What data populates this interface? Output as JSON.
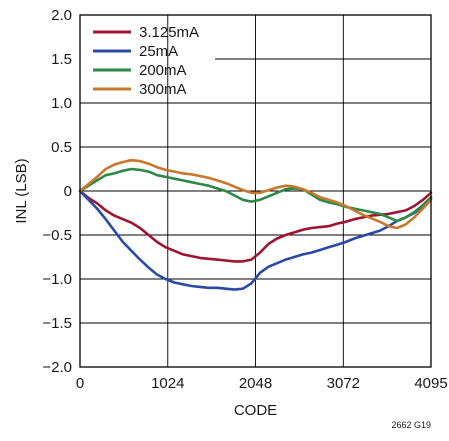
{
  "chart_data": {
    "type": "line",
    "title": "",
    "xlabel": "CODE",
    "ylabel": "INL (LSB)",
    "xlim": [
      0,
      4095
    ],
    "ylim": [
      -2.0,
      2.0
    ],
    "x_ticks": [
      0,
      1024,
      2048,
      3072,
      4095
    ],
    "x_tick_labels": [
      "0",
      "1024",
      "2048",
      "3072",
      "4095"
    ],
    "y_ticks": [
      2.0,
      1.5,
      1.0,
      0.5,
      0,
      -0.5,
      -1.0,
      -1.5,
      -2.0
    ],
    "y_tick_labels": [
      "2.0",
      "1.5",
      "1.0",
      "0.5",
      "0",
      "−0.5",
      "−1.0",
      "−1.5",
      "−2.0"
    ],
    "grid": true,
    "legend_position": "top-left",
    "figure_id": "2662 G19",
    "series": [
      {
        "name": "3.125mA",
        "color": "#9e1530",
        "x": [
          0,
          100,
          200,
          300,
          400,
          500,
          600,
          700,
          800,
          900,
          1000,
          1100,
          1200,
          1300,
          1400,
          1500,
          1600,
          1700,
          1800,
          1900,
          2000,
          2100,
          2200,
          2300,
          2400,
          2500,
          2600,
          2700,
          2800,
          2900,
          3000,
          3100,
          3200,
          3300,
          3400,
          3500,
          3600,
          3700,
          3800,
          3900,
          4000,
          4095
        ],
        "y": [
          0,
          -0.08,
          -0.14,
          -0.22,
          -0.28,
          -0.32,
          -0.36,
          -0.42,
          -0.5,
          -0.58,
          -0.64,
          -0.68,
          -0.72,
          -0.74,
          -0.76,
          -0.77,
          -0.78,
          -0.79,
          -0.8,
          -0.8,
          -0.78,
          -0.7,
          -0.6,
          -0.54,
          -0.5,
          -0.47,
          -0.44,
          -0.42,
          -0.41,
          -0.4,
          -0.37,
          -0.35,
          -0.32,
          -0.3,
          -0.28,
          -0.27,
          -0.26,
          -0.24,
          -0.22,
          -0.17,
          -0.1,
          -0.02
        ]
      },
      {
        "name": "25mA",
        "color": "#2b4aa6",
        "x": [
          0,
          100,
          200,
          300,
          400,
          500,
          600,
          700,
          800,
          900,
          1000,
          1100,
          1200,
          1300,
          1400,
          1500,
          1600,
          1700,
          1800,
          1900,
          2000,
          2100,
          2200,
          2300,
          2400,
          2500,
          2600,
          2700,
          2800,
          2900,
          3000,
          3100,
          3200,
          3300,
          3400,
          3500,
          3600,
          3700,
          3800,
          3900,
          4000,
          4095
        ],
        "y": [
          0,
          -0.1,
          -0.2,
          -0.32,
          -0.45,
          -0.58,
          -0.68,
          -0.78,
          -0.87,
          -0.95,
          -1.0,
          -1.04,
          -1.06,
          -1.08,
          -1.09,
          -1.1,
          -1.1,
          -1.11,
          -1.12,
          -1.11,
          -1.05,
          -0.93,
          -0.86,
          -0.82,
          -0.78,
          -0.75,
          -0.72,
          -0.7,
          -0.67,
          -0.64,
          -0.61,
          -0.58,
          -0.54,
          -0.51,
          -0.48,
          -0.45,
          -0.4,
          -0.34,
          -0.3,
          -0.25,
          -0.17,
          -0.08
        ]
      },
      {
        "name": "200mA",
        "color": "#2b8a4a",
        "x": [
          0,
          100,
          200,
          300,
          400,
          500,
          600,
          700,
          800,
          900,
          1000,
          1100,
          1200,
          1300,
          1400,
          1500,
          1600,
          1700,
          1800,
          1900,
          2000,
          2100,
          2200,
          2300,
          2400,
          2500,
          2600,
          2700,
          2800,
          2900,
          3000,
          3100,
          3200,
          3300,
          3400,
          3500,
          3600,
          3700,
          3800,
          3900,
          4000,
          4095
        ],
        "y": [
          0,
          0.06,
          0.12,
          0.18,
          0.2,
          0.23,
          0.25,
          0.24,
          0.22,
          0.18,
          0.16,
          0.14,
          0.12,
          0.1,
          0.08,
          0.06,
          0.03,
          0.0,
          -0.05,
          -0.1,
          -0.12,
          -0.1,
          -0.06,
          -0.02,
          0.02,
          0.03,
          0.02,
          -0.04,
          -0.1,
          -0.13,
          -0.15,
          -0.18,
          -0.2,
          -0.22,
          -0.24,
          -0.26,
          -0.3,
          -0.34,
          -0.3,
          -0.24,
          -0.16,
          -0.07
        ]
      },
      {
        "name": "300mA",
        "color": "#c9772c",
        "x": [
          0,
          100,
          200,
          300,
          400,
          500,
          600,
          700,
          800,
          900,
          1000,
          1100,
          1200,
          1300,
          1400,
          1500,
          1600,
          1700,
          1800,
          1900,
          2000,
          2100,
          2200,
          2300,
          2400,
          2500,
          2600,
          2700,
          2800,
          2900,
          3000,
          3100,
          3200,
          3300,
          3400,
          3500,
          3600,
          3700,
          3800,
          3900,
          4000,
          4095
        ],
        "y": [
          0,
          0.08,
          0.16,
          0.25,
          0.3,
          0.33,
          0.35,
          0.34,
          0.31,
          0.27,
          0.24,
          0.22,
          0.2,
          0.19,
          0.17,
          0.15,
          0.12,
          0.09,
          0.05,
          0.01,
          -0.02,
          -0.02,
          0.01,
          0.04,
          0.06,
          0.05,
          0.02,
          -0.02,
          -0.07,
          -0.1,
          -0.13,
          -0.17,
          -0.22,
          -0.27,
          -0.31,
          -0.35,
          -0.4,
          -0.42,
          -0.38,
          -0.3,
          -0.2,
          -0.1
        ]
      }
    ]
  }
}
